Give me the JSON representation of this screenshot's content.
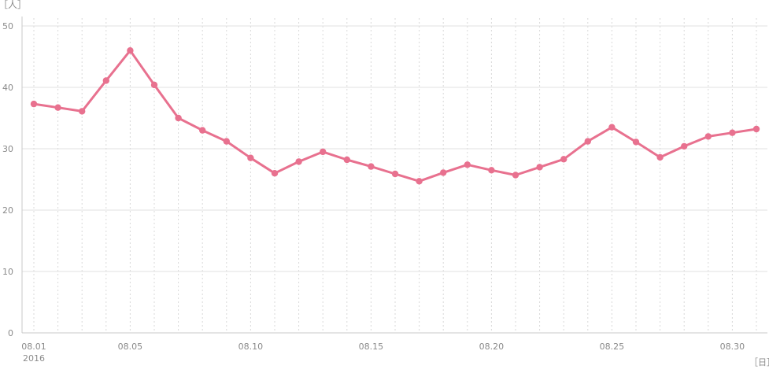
{
  "chart_data": {
    "type": "line",
    "ylabel": "［人］",
    "xlabel": "［日］",
    "ylim": [
      0,
      50
    ],
    "yticks": [
      0,
      10,
      20,
      30,
      40,
      50
    ],
    "grid": {
      "horizontal": true,
      "vertical_dotted": true
    },
    "x_labels": [
      {
        "day": 1,
        "label": "08.01",
        "sublabel": "2016"
      },
      {
        "day": 5,
        "label": "08.05"
      },
      {
        "day": 10,
        "label": "08.10"
      },
      {
        "day": 15,
        "label": "08.15"
      },
      {
        "day": 20,
        "label": "08.20"
      },
      {
        "day": 25,
        "label": "08.25"
      },
      {
        "day": 30,
        "label": "08.30"
      }
    ],
    "series": [
      {
        "color": "#e8718f",
        "x": [
          1,
          2,
          3,
          4,
          5,
          6,
          7,
          8,
          9,
          10,
          11,
          12,
          13,
          14,
          15,
          16,
          17,
          18,
          19,
          20,
          21,
          22,
          23,
          24,
          25,
          26,
          27,
          28,
          29,
          30,
          31
        ],
        "values": [
          37.3,
          36.7,
          36.1,
          41.1,
          46.0,
          40.4,
          35.0,
          33.0,
          31.2,
          28.5,
          26.0,
          27.9,
          29.5,
          28.2,
          27.1,
          25.9,
          24.7,
          26.1,
          27.4,
          26.5,
          25.7,
          27.0,
          28.3,
          31.2,
          33.5,
          31.1,
          28.6,
          30.4,
          32.0,
          32.6,
          33.2
        ]
      }
    ]
  }
}
